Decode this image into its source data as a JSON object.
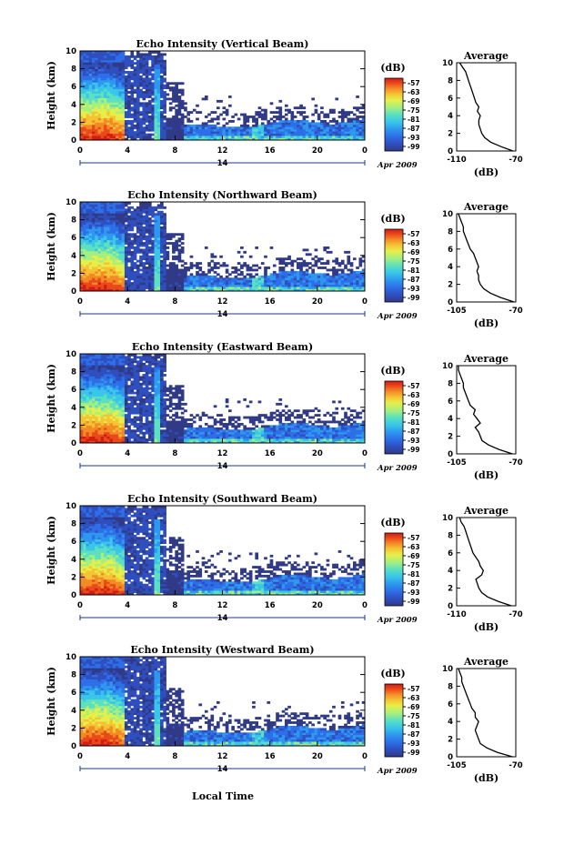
{
  "xlabel": "Local Time",
  "date_label": "Apr 2009",
  "day_label": "14",
  "colorbar_unit": "(dB)",
  "colorbar_ticks": [
    "-57",
    "-63",
    "-69",
    "-75",
    "-81",
    "-87",
    "-93",
    "-99"
  ],
  "colormap": [
    "#303a87",
    "#2f4fbf",
    "#2d6fe8",
    "#2e98ee",
    "#39c6e8",
    "#5ce0c0",
    "#a6ef7e",
    "#e6ef4a",
    "#f5c334",
    "#f38a26",
    "#ea4a1b",
    "#d31c14"
  ],
  "panels": [
    {
      "title": "Echo Intensity (Vertical Beam)",
      "avg_title": "Average",
      "avg_xticks": [
        "-110",
        "-70"
      ],
      "avg_xlabel": "(dB)",
      "ylabel": "Height (km)"
    },
    {
      "title": "Echo Intensity (Northward Beam)",
      "avg_title": "Average",
      "avg_xticks": [
        "-105",
        "-70"
      ],
      "avg_xlabel": "(dB)",
      "ylabel": "Height (km)"
    },
    {
      "title": "Echo Intensity (Eastward Beam)",
      "avg_title": "Average",
      "avg_xticks": [
        "-105",
        "-70"
      ],
      "avg_xlabel": "(dB)",
      "ylabel": "Height (km)"
    },
    {
      "title": "Echo Intensity (Southward Beam)",
      "avg_title": "Average",
      "avg_xticks": [
        "-110",
        "-70"
      ],
      "avg_xlabel": "(dB)",
      "ylabel": "Height (km)"
    },
    {
      "title": "Echo Intensity (Westward Beam)",
      "avg_title": "Average",
      "avg_xticks": [
        "-105",
        "-70"
      ],
      "avg_xlabel": "(dB)",
      "ylabel": "Height (km)"
    }
  ],
  "chart_data": {
    "type": "heatmap",
    "x_ticks": [
      "0",
      "4",
      "8",
      "12",
      "16",
      "20",
      "0"
    ],
    "y_ticks": [
      "0",
      "2",
      "4",
      "6",
      "8",
      "10"
    ],
    "xlim": [
      0,
      24
    ],
    "ylim": [
      0,
      10
    ],
    "color_scale_db": [
      -99,
      -57
    ],
    "average_profiles": [
      {
        "xlim": [
          -110,
          -70
        ],
        "height_km": [
          0,
          0.5,
          1,
          1.5,
          2,
          2.5,
          3,
          3.5,
          4,
          4.5,
          5,
          5.5,
          6,
          6.5,
          7,
          7.5,
          8,
          8.5,
          9,
          9.5,
          10
        ],
        "db": [
          -72,
          -80,
          -87,
          -91,
          -93,
          -94,
          -95,
          -95,
          -94,
          -96,
          -95,
          -97,
          -98,
          -99,
          -100,
          -101,
          -102,
          -103,
          -104,
          -106,
          -108
        ]
      },
      {
        "xlim": [
          -105,
          -70
        ],
        "height_km": [
          0,
          0.5,
          1,
          1.5,
          2,
          2.5,
          3,
          3.5,
          4,
          4.5,
          5,
          5.5,
          6,
          6.5,
          7,
          7.5,
          8,
          8.5,
          9,
          9.5,
          10
        ],
        "db": [
          -71,
          -79,
          -85,
          -89,
          -91,
          -92,
          -92,
          -93,
          -92,
          -93,
          -94,
          -95,
          -97,
          -98,
          -99,
          -100,
          -101,
          -101,
          -102,
          -103,
          -104
        ]
      },
      {
        "xlim": [
          -105,
          -70
        ],
        "height_km": [
          0,
          0.5,
          1,
          1.5,
          2,
          2.5,
          3,
          3.5,
          4,
          4.5,
          5,
          5.5,
          6,
          6.5,
          7,
          7.5,
          8,
          8.5,
          9,
          9.5,
          10
        ],
        "db": [
          -72,
          -80,
          -86,
          -90,
          -91,
          -92,
          -94,
          -91,
          -93,
          -95,
          -94,
          -97,
          -98,
          -99,
          -100,
          -101,
          -101,
          -102,
          -103,
          -104,
          -104
        ]
      },
      {
        "xlim": [
          -110,
          -70
        ],
        "height_km": [
          0,
          0.5,
          1,
          1.5,
          2,
          2.5,
          3,
          3.5,
          4,
          4.5,
          5,
          5.5,
          6,
          6.5,
          7,
          7.5,
          8,
          8.5,
          9,
          9.5,
          10
        ],
        "db": [
          -73,
          -82,
          -89,
          -93,
          -95,
          -96,
          -97,
          -93,
          -92,
          -94,
          -95,
          -97,
          -99,
          -100,
          -101,
          -102,
          -103,
          -104,
          -105,
          -107,
          -108
        ]
      },
      {
        "xlim": [
          -105,
          -70
        ],
        "height_km": [
          0,
          0.5,
          1,
          1.5,
          2,
          2.5,
          3,
          3.5,
          4,
          4.5,
          5,
          5.5,
          6,
          6.5,
          7,
          7.5,
          8,
          8.5,
          9,
          9.5,
          10
        ],
        "db": [
          -72,
          -81,
          -87,
          -91,
          -92,
          -93,
          -94,
          -93,
          -92,
          -94,
          -94,
          -96,
          -97,
          -98,
          -99,
          -100,
          -101,
          -102,
          -102,
          -103,
          -104
        ]
      }
    ]
  }
}
